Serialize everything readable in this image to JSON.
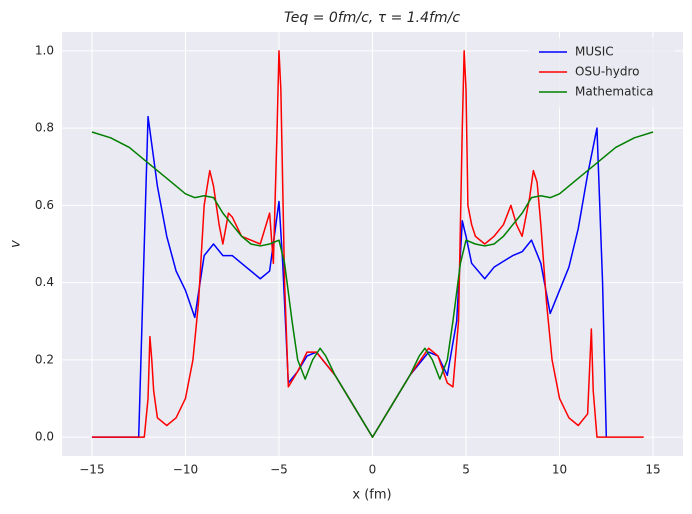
{
  "chart_data": {
    "type": "line",
    "title": "Teq = 0fm/c, τ = 1.4fm/c",
    "x_label": "x (fm)",
    "y_label": "v",
    "xlim": [
      -16.6,
      16.6
    ],
    "ylim": [
      -0.049,
      1.049
    ],
    "xticks": [
      {
        "value": -15,
        "label": "−15"
      },
      {
        "value": -10,
        "label": "−10"
      },
      {
        "value": -5,
        "label": "−5"
      },
      0,
      5,
      10,
      15
    ],
    "yticks": [
      {
        "value": 0,
        "label": "0.0"
      },
      {
        "value": 0.2,
        "label": "0.2"
      },
      {
        "value": 0.4,
        "label": "0.4"
      },
      {
        "value": 0.6,
        "label": "0.6"
      },
      {
        "value": 0.8,
        "label": "0.8"
      },
      {
        "value": 1,
        "label": "1.0"
      }
    ],
    "grid": true,
    "legend": "upper right",
    "series": [
      {
        "name": "MUSIC",
        "color": "#0000ff",
        "x": [
          -15,
          -12.5,
          -12.2,
          -12,
          -11.5,
          -11,
          -10.5,
          -10,
          -9.5,
          -9,
          -8.5,
          -8,
          -7.5,
          -7,
          -6,
          -5.5,
          -5,
          -4.8,
          -4.5,
          -4,
          -3.5,
          -3,
          -2,
          -1,
          0,
          1,
          2,
          3,
          3.5,
          4,
          4.5,
          4.8,
          5,
          5.3,
          6,
          6.5,
          7.5,
          8,
          8.5,
          9,
          9.5,
          10,
          10.5,
          11,
          11.5,
          12,
          12.3,
          12.5
        ],
        "values": [
          0,
          0,
          0.5,
          0.83,
          0.65,
          0.52,
          0.43,
          0.38,
          0.31,
          0.47,
          0.5,
          0.47,
          0.47,
          0.45,
          0.41,
          0.43,
          0.61,
          0.45,
          0.14,
          0.17,
          0.21,
          0.22,
          0.16,
          0.08,
          0,
          0.08,
          0.16,
          0.22,
          0.21,
          0.16,
          0.3,
          0.56,
          0.52,
          0.45,
          0.41,
          0.44,
          0.47,
          0.48,
          0.51,
          0.45,
          0.32,
          0.38,
          0.44,
          0.54,
          0.68,
          0.8,
          0.4,
          0
        ]
      },
      {
        "name": "OSU-hydro",
        "color": "#ff0000",
        "x": [
          -15,
          -12.2,
          -12,
          -11.9,
          -11.8,
          -11.7,
          -11.5,
          -11,
          -10.5,
          -10,
          -9.6,
          -9.3,
          -9,
          -8.7,
          -8.5,
          -8.2,
          -8,
          -7.7,
          -7.5,
          -7,
          -6,
          -5.5,
          -5.3,
          -5.1,
          -5,
          -4.9,
          -4.7,
          -4.5,
          -4,
          -3.5,
          -3,
          -2,
          -1,
          0,
          1,
          2,
          3,
          3.5,
          4,
          4.3,
          4.6,
          4.8,
          4.9,
          5,
          5.1,
          5.3,
          5.5,
          6,
          6.5,
          7,
          7.4,
          7.7,
          8,
          8.4,
          8.6,
          8.8,
          9,
          9.3,
          9.6,
          10,
          10.5,
          11,
          11.5,
          11.7,
          11.8,
          12,
          14.5
        ],
        "values": [
          0,
          0,
          0.1,
          0.26,
          0.2,
          0.12,
          0.05,
          0.03,
          0.05,
          0.1,
          0.2,
          0.35,
          0.6,
          0.69,
          0.65,
          0.55,
          0.5,
          0.58,
          0.57,
          0.52,
          0.5,
          0.58,
          0.45,
          0.8,
          1.0,
          0.9,
          0.4,
          0.13,
          0.17,
          0.22,
          0.22,
          0.16,
          0.08,
          0,
          0.08,
          0.16,
          0.23,
          0.21,
          0.14,
          0.13,
          0.3,
          0.8,
          1.0,
          0.9,
          0.6,
          0.55,
          0.52,
          0.5,
          0.52,
          0.55,
          0.6,
          0.55,
          0.52,
          0.62,
          0.69,
          0.66,
          0.55,
          0.35,
          0.2,
          0.1,
          0.05,
          0.03,
          0.06,
          0.28,
          0.12,
          0,
          0
        ]
      },
      {
        "name": "Mathematica",
        "color": "#008000",
        "x": [
          -15,
          -14,
          -13,
          -12,
          -11,
          -10,
          -9.5,
          -9,
          -8.5,
          -8,
          -7.5,
          -7,
          -6.5,
          -6,
          -5.5,
          -5,
          -4.7,
          -4.3,
          -4,
          -3.6,
          -3.2,
          -2.8,
          -2.5,
          -2,
          -1,
          0,
          1,
          2,
          2.5,
          2.8,
          3.2,
          3.6,
          4,
          4.3,
          4.7,
          5,
          5.5,
          6,
          6.5,
          7,
          7.5,
          8,
          8.5,
          9,
          9.5,
          10,
          11,
          12,
          13,
          14,
          15
        ],
        "values": [
          0.79,
          0.775,
          0.75,
          0.71,
          0.67,
          0.63,
          0.62,
          0.625,
          0.62,
          0.58,
          0.55,
          0.52,
          0.5,
          0.495,
          0.5,
          0.51,
          0.45,
          0.3,
          0.2,
          0.15,
          0.2,
          0.23,
          0.21,
          0.16,
          0.08,
          0,
          0.08,
          0.16,
          0.21,
          0.23,
          0.2,
          0.15,
          0.2,
          0.3,
          0.45,
          0.51,
          0.5,
          0.495,
          0.5,
          0.52,
          0.55,
          0.58,
          0.62,
          0.625,
          0.62,
          0.63,
          0.67,
          0.71,
          0.75,
          0.775,
          0.79
        ]
      }
    ]
  }
}
